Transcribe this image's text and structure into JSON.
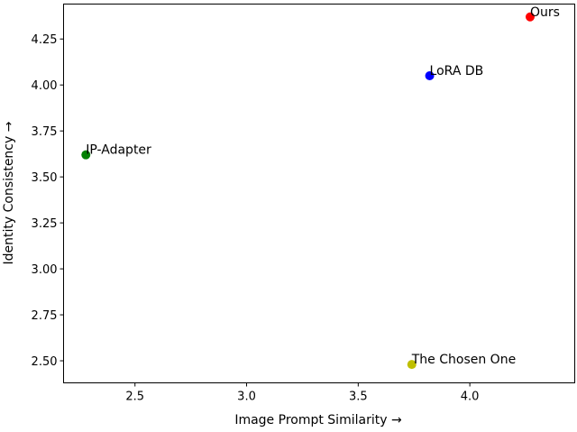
{
  "chart_data": {
    "type": "scatter",
    "title": "",
    "xlabel": "Image Prompt Similarity →",
    "ylabel": "Identity Consistency →",
    "xlim": [
      2.18,
      4.47
    ],
    "ylim": [
      2.38,
      4.44
    ],
    "xticks": [
      2.5,
      3.0,
      3.5,
      4.0
    ],
    "xtick_labels": [
      "2.5",
      "3.0",
      "3.5",
      "4.0"
    ],
    "yticks": [
      2.5,
      2.75,
      3.0,
      3.25,
      3.5,
      3.75,
      4.0,
      4.25
    ],
    "ytick_labels": [
      "2.50",
      "2.75",
      "3.00",
      "3.25",
      "3.50",
      "3.75",
      "4.00",
      "4.25"
    ],
    "grid": false,
    "points": [
      {
        "label": "Ours",
        "x": 4.27,
        "y": 4.37,
        "color": "#ff0000"
      },
      {
        "label": "LoRA DB",
        "x": 3.82,
        "y": 4.05,
        "color": "#0000ff"
      },
      {
        "label": "IP-Adapter",
        "x": 2.28,
        "y": 3.62,
        "color": "#008000"
      },
      {
        "label": "The Chosen One",
        "x": 3.74,
        "y": 2.48,
        "color": "#bfbf00"
      }
    ]
  }
}
